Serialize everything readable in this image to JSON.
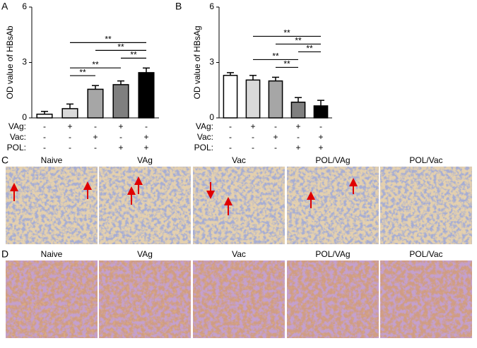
{
  "chart_data": [
    {
      "type": "bar",
      "panel": "A",
      "ylabel": "OD value of HBsAb",
      "values": [
        0.2,
        0.5,
        1.55,
        1.8,
        2.45
      ],
      "errors": [
        0.15,
        0.25,
        0.2,
        0.2,
        0.25
      ],
      "colors": [
        "#ffffff",
        "#d9d9d9",
        "#a6a6a6",
        "#7f7f7f",
        "#000000"
      ],
      "ylim": [
        0,
        6
      ],
      "yticks": [
        0,
        3,
        6
      ],
      "annotations": [
        {
          "text": "**",
          "from": 1,
          "to": 2
        },
        {
          "text": "**",
          "from": 1,
          "to": 3
        },
        {
          "text": "**",
          "from": 3,
          "to": 4
        },
        {
          "text": "**",
          "from": 2,
          "to": 4
        },
        {
          "text": "**",
          "from": 1,
          "to": 4
        }
      ],
      "rows": [
        {
          "label": "VAg:",
          "values": [
            "-",
            "+",
            "-",
            "+",
            "-"
          ]
        },
        {
          "label": "Vac:",
          "values": [
            "-",
            "-",
            "+",
            "-",
            "+"
          ]
        },
        {
          "label": "POL:",
          "values": [
            "-",
            "-",
            "-",
            "+",
            "+"
          ]
        }
      ]
    },
    {
      "type": "bar",
      "panel": "B",
      "ylabel": "OD value of HBsAg",
      "values": [
        2.3,
        2.05,
        2.0,
        0.85,
        0.65
      ],
      "errors": [
        0.15,
        0.25,
        0.2,
        0.25,
        0.3
      ],
      "colors": [
        "#ffffff",
        "#d9d9d9",
        "#a6a6a6",
        "#7f7f7f",
        "#000000"
      ],
      "ylim": [
        0,
        6
      ],
      "yticks": [
        0,
        3,
        6
      ],
      "annotations": [
        {
          "text": "**",
          "from": 2,
          "to": 3
        },
        {
          "text": "**",
          "from": 1,
          "to": 3
        },
        {
          "text": "**",
          "from": 3,
          "to": 4
        },
        {
          "text": "**",
          "from": 2,
          "to": 4
        },
        {
          "text": "**",
          "from": 1,
          "to": 4
        }
      ],
      "rows": [
        {
          "label": "VAg:",
          "values": [
            "-",
            "+",
            "-",
            "+",
            "-"
          ]
        },
        {
          "label": "Vac:",
          "values": [
            "-",
            "-",
            "+",
            "-",
            "+"
          ]
        },
        {
          "label": "POL:",
          "values": [
            "-",
            "-",
            "-",
            "+",
            "+"
          ]
        }
      ]
    }
  ],
  "panel_c": {
    "label": "C",
    "titles": [
      "Naive",
      "VAg",
      "Vac",
      "POL/VAg",
      "POL/Vac"
    ]
  },
  "panel_d": {
    "label": "D",
    "titles": [
      "Naive",
      "VAg",
      "Vac",
      "POL/VAg",
      "POL/Vac"
    ]
  }
}
